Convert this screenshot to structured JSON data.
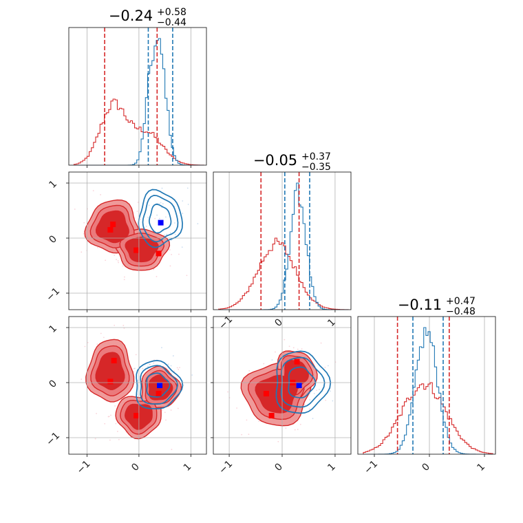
{
  "figure": {
    "type": "corner-plot",
    "colors": {
      "red": "#d62728",
      "blue": "#1f77b4",
      "red_fill_outer": "#ef9a9a",
      "red_fill_inner": "#d62728",
      "grid": "#b0b0b0",
      "point_red": "#ff0000",
      "point_blue": "#0000ff"
    }
  },
  "chart_data": [
    {
      "type": "histogram",
      "panel": "diag-0",
      "title": {
        "center": "−0.24",
        "plus": "+0.58",
        "minus": "−0.44"
      },
      "xlim": [
        -1.35,
        1.3
      ],
      "series": [
        {
          "name": "",
          "color": "red",
          "kind": "bimodal",
          "modes": [
            [
              -0.5,
              0.25,
              1.0
            ],
            [
              0.15,
              0.3,
              0.55
            ]
          ]
        },
        {
          "name": "",
          "color": "blue",
          "kind": "peaks",
          "modes": [
            [
              0.4,
              0.13,
              1.0
            ],
            [
              0.2,
              0.1,
              0.5
            ]
          ]
        }
      ],
      "vlines": [
        {
          "x": -0.66,
          "color": "red"
        },
        {
          "x": 0.35,
          "color": "red"
        },
        {
          "x": 0.18,
          "color": "blue"
        },
        {
          "x": 0.65,
          "color": "blue"
        }
      ]
    },
    {
      "type": "histogram",
      "panel": "diag-1",
      "title": {
        "center": "−0.05",
        "plus": "+0.37",
        "minus": "−0.35"
      },
      "xlim": [
        -1.3,
        1.3
      ],
      "series": [
        {
          "name": "",
          "color": "red",
          "kind": "broad",
          "modes": [
            [
              -0.1,
              0.35,
              1.0
            ]
          ]
        },
        {
          "name": "",
          "color": "blue",
          "kind": "peaks",
          "modes": [
            [
              0.3,
              0.15,
              1.0
            ]
          ]
        }
      ],
      "vlines": [
        {
          "x": -0.4,
          "color": "red"
        },
        {
          "x": 0.32,
          "color": "red"
        },
        {
          "x": 0.05,
          "color": "blue"
        },
        {
          "x": 0.52,
          "color": "blue"
        }
      ],
      "xticks": [
        "−1",
        "0",
        "1"
      ]
    },
    {
      "type": "histogram",
      "panel": "diag-2",
      "title": {
        "center": "−0.11",
        "plus": "+0.47",
        "minus": "−0.48"
      },
      "xlim": [
        -1.3,
        1.2
      ],
      "series": [
        {
          "name": "",
          "color": "red",
          "kind": "broad",
          "modes": [
            [
              -0.1,
              0.4,
              1.0
            ]
          ]
        },
        {
          "name": "",
          "color": "blue",
          "kind": "peaks",
          "modes": [
            [
              -0.05,
              0.2,
              1.0
            ]
          ]
        }
      ],
      "vlines": [
        {
          "x": -0.58,
          "color": "red"
        },
        {
          "x": 0.36,
          "color": "red"
        },
        {
          "x": -0.3,
          "color": "blue"
        },
        {
          "x": 0.25,
          "color": "blue"
        }
      ],
      "xticks": [
        "−1",
        "0",
        "1"
      ]
    },
    {
      "type": "scatter",
      "panel": "pair-1-0",
      "xlim": [
        -1.35,
        1.3
      ],
      "ylim": [
        -1.3,
        1.2
      ],
      "yticks": [
        "−1",
        "0",
        "1"
      ],
      "red_points": [
        [
          -0.5,
          0.25
        ],
        [
          -0.55,
          0.15
        ],
        [
          -0.05,
          -0.22
        ],
        [
          0.38,
          -0.28
        ]
      ],
      "blue_points": [
        [
          0.42,
          0.28
        ]
      ],
      "red_blobs": [
        [
          -0.5,
          0.2,
          0.4,
          0.38
        ],
        [
          0.05,
          -0.2,
          0.4,
          0.3
        ]
      ],
      "blue_blobs": [
        [
          0.4,
          0.35,
          0.33,
          0.4
        ]
      ]
    },
    {
      "type": "scatter",
      "panel": "pair-2-0",
      "xlim": [
        -1.35,
        1.3
      ],
      "ylim": [
        -1.3,
        1.2
      ],
      "yticks": [
        "−1",
        "0",
        "1"
      ],
      "xticks": [
        "−1",
        "0",
        "1"
      ],
      "red_points": [
        [
          -0.48,
          0.4
        ],
        [
          -0.55,
          0.02
        ],
        [
          -0.05,
          -0.6
        ],
        [
          0.38,
          -0.2
        ]
      ],
      "blue_points": [
        [
          0.4,
          -0.05
        ]
      ],
      "red_blobs": [
        [
          -0.55,
          0.2,
          0.35,
          0.45
        ],
        [
          0.0,
          -0.6,
          0.35,
          0.3
        ],
        [
          0.4,
          -0.1,
          0.3,
          0.3
        ]
      ],
      "blue_blobs": [
        [
          0.35,
          -0.05,
          0.35,
          0.35
        ]
      ]
    },
    {
      "type": "scatter",
      "panel": "pair-2-1",
      "xlim": [
        -1.3,
        1.3
      ],
      "ylim": [
        -1.3,
        1.2
      ],
      "xticks": [
        "−1",
        "0",
        "1"
      ],
      "red_points": [
        [
          -0.3,
          -0.2
        ],
        [
          -0.2,
          -0.6
        ],
        [
          0.2,
          0.0
        ],
        [
          0.28,
          0.38
        ]
      ],
      "blue_points": [
        [
          0.32,
          -0.05
        ]
      ],
      "red_blobs": [
        [
          -0.1,
          -0.2,
          0.5,
          0.45
        ],
        [
          0.25,
          0.15,
          0.3,
          0.35
        ]
      ],
      "blue_blobs": [
        [
          0.35,
          0.0,
          0.4,
          0.45
        ]
      ]
    }
  ]
}
